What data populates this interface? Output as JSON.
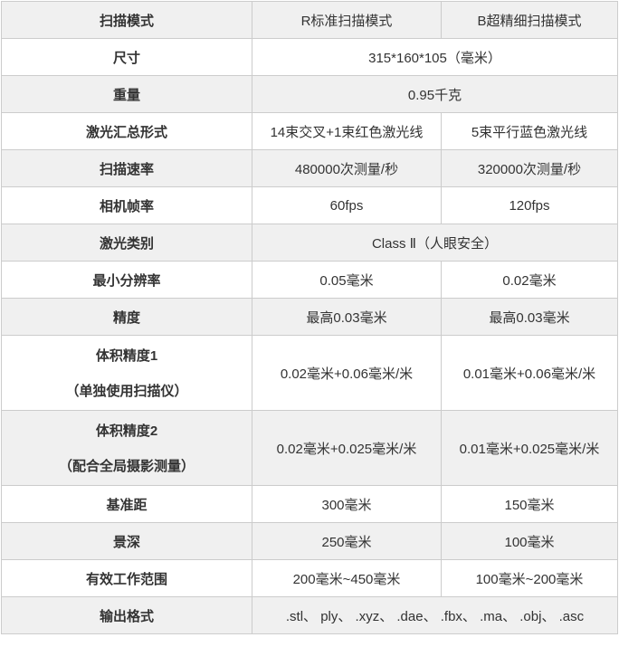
{
  "colors": {
    "row_alt_background": "#f0f0f0",
    "row_background": "#ffffff",
    "border": "#cccccc",
    "text": "#333333"
  },
  "table": {
    "rows": [
      {
        "label": "扫描模式",
        "values": [
          "R标准扫描模式",
          "B超精细扫描模式"
        ]
      },
      {
        "label": "尺寸",
        "span": true,
        "values": [
          "315*160*105（毫米）"
        ]
      },
      {
        "label": "重量",
        "span": true,
        "values": [
          "0.95千克"
        ]
      },
      {
        "label": "激光汇总形式",
        "values": [
          "14束交叉+1束红色激光线",
          "5束平行蓝色激光线"
        ]
      },
      {
        "label": "扫描速率",
        "values": [
          "480000次测量/秒",
          "320000次测量/秒"
        ]
      },
      {
        "label": "相机帧率",
        "values": [
          "60fps",
          "120fps"
        ]
      },
      {
        "label": "激光类别",
        "span": true,
        "values": [
          "Class Ⅱ（人眼安全）"
        ]
      },
      {
        "label": "最小分辨率",
        "values": [
          "0.05毫米",
          "0.02毫米"
        ]
      },
      {
        "label": "精度",
        "values": [
          "最高0.03毫米",
          "最高0.03毫米"
        ]
      },
      {
        "label": "体积精度1",
        "sublabel": "（单独使用扫描仪）",
        "tall": true,
        "values": [
          "0.02毫米+0.06毫米/米",
          "0.01毫米+0.06毫米/米"
        ]
      },
      {
        "label": "体积精度2",
        "sublabel": "（配合全局摄影测量）",
        "tall": true,
        "values": [
          "0.02毫米+0.025毫米/米",
          "0.01毫米+0.025毫米/米"
        ]
      },
      {
        "label": "基准距",
        "values": [
          "300毫米",
          "150毫米"
        ]
      },
      {
        "label": "景深",
        "values": [
          "250毫米",
          "100毫米"
        ]
      },
      {
        "label": "有效工作范围",
        "values": [
          "200毫米~450毫米",
          "100毫米~200毫米"
        ]
      },
      {
        "label": "输出格式",
        "span": true,
        "values": [
          ".stl、 ply、 .xyz、 .dae、 .fbx、 .ma、 .obj、 .asc"
        ]
      }
    ]
  }
}
